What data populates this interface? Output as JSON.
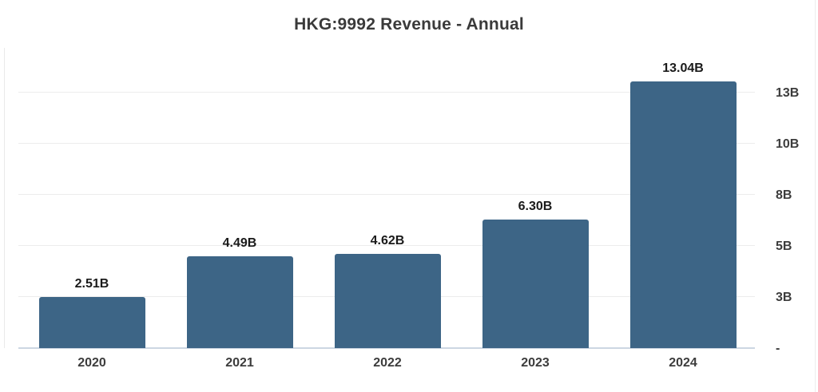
{
  "header": {
    "title": "HKG:9992 Revenue - Annual"
  },
  "chart_data": {
    "type": "bar",
    "title": "HKG:9992 Revenue - Annual",
    "categories": [
      "2020",
      "2021",
      "2022",
      "2023",
      "2024"
    ],
    "series": [
      {
        "name": "Revenue",
        "values": [
          2.51,
          4.49,
          4.62,
          6.3,
          13.04
        ]
      }
    ],
    "bar_value_labels": [
      "2.51B",
      "4.49B",
      "4.62B",
      "6.30B",
      "13.04B"
    ],
    "xlabel": "",
    "ylabel": "",
    "ylim": [
      0,
      13.04
    ],
    "y_axis_side": "right",
    "yticks": [
      {
        "label": "-",
        "step": 0
      },
      {
        "label": "3B",
        "step": 1
      },
      {
        "label": "5B",
        "step": 2
      },
      {
        "label": "8B",
        "step": 3
      },
      {
        "label": "10B",
        "step": 4
      },
      {
        "label": "13B",
        "step": 5
      }
    ],
    "grid": true,
    "legend": false,
    "colors": {
      "bar": "#3d6586",
      "gridline": "#ececec",
      "baseline": "#ccd6e2",
      "axis_line": "#e9e9e9",
      "title_text": "#3a3a3a",
      "value_label_text": "#1a1a1a",
      "tick_label_text": "#3c3c3c",
      "background": "#ffffff"
    }
  }
}
